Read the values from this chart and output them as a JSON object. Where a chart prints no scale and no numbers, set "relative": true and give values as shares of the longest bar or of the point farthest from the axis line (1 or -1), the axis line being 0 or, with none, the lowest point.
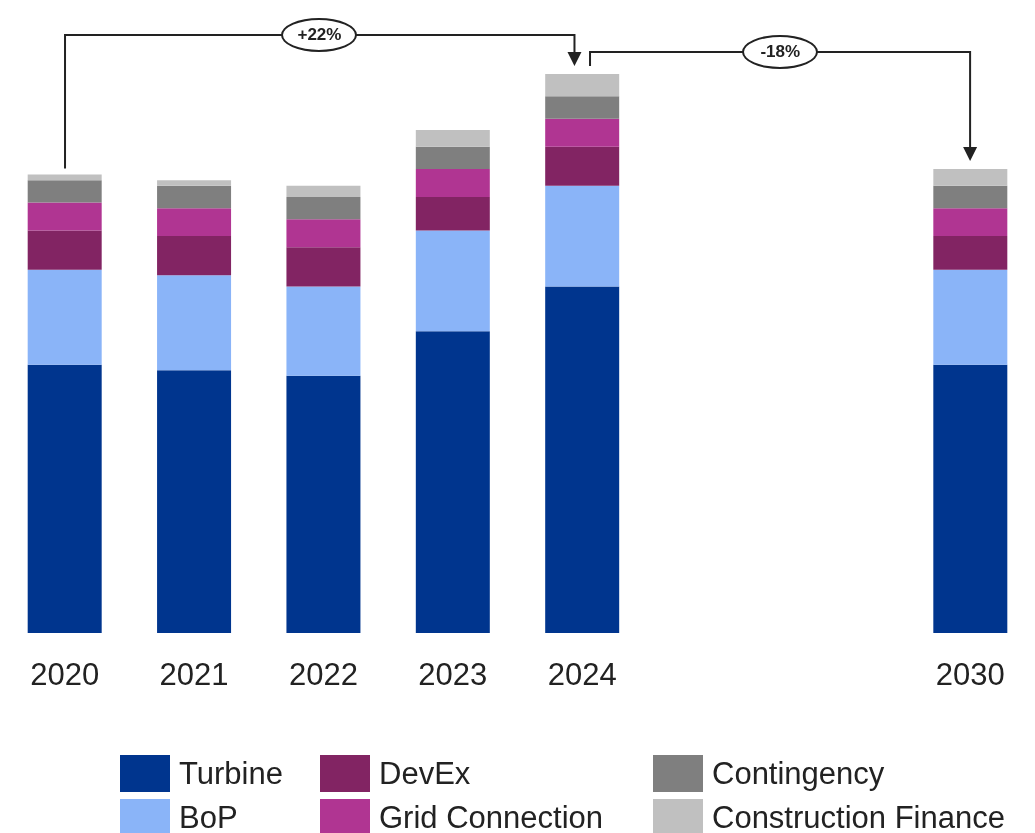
{
  "chart_data": {
    "type": "bar",
    "stacked": true,
    "relative": true,
    "legend": "bottom",
    "categories": [
      "2020",
      "2021",
      "2022",
      "2023",
      "2024",
      null,
      null,
      "2030"
    ],
    "series": [
      {
        "name": "Turbine",
        "color": "#00358e",
        "values": [
          0.48,
          0.47,
          0.46,
          0.54,
          0.62,
          null,
          null,
          0.48
        ]
      },
      {
        "name": "BoP",
        "color": "#8ab4f8",
        "values": [
          0.17,
          0.17,
          0.16,
          0.18,
          0.18,
          null,
          null,
          0.17
        ]
      },
      {
        "name": "DevEx",
        "color": "#822463",
        "values": [
          0.07,
          0.07,
          0.07,
          0.06,
          0.07,
          null,
          null,
          0.06
        ]
      },
      {
        "name": "Grid Connection",
        "color": "#b03592",
        "values": [
          0.05,
          0.05,
          0.05,
          0.05,
          0.05,
          null,
          null,
          0.05
        ]
      },
      {
        "name": "Contingency",
        "color": "#7f7f7f",
        "values": [
          0.04,
          0.04,
          0.04,
          0.04,
          0.04,
          null,
          null,
          0.04
        ]
      },
      {
        "name": "Construction Finance",
        "color": "#c0c0c0",
        "values": [
          0.01,
          0.01,
          0.02,
          0.03,
          0.04,
          null,
          null,
          0.03
        ]
      }
    ],
    "annotations": [
      "+22%",
      "-18%"
    ]
  }
}
